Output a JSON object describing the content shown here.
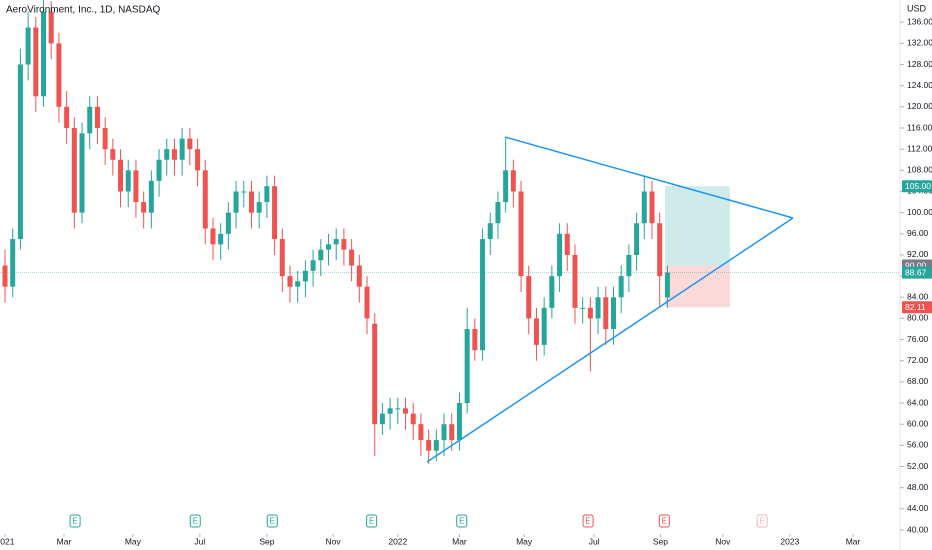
{
  "chart_data": {
    "type": "candlestick",
    "title": "AeroVironment, Inc., 1D, NASDAQ",
    "currency": "USD",
    "up_color": "#26a69a",
    "down_color": "#ef5350",
    "series": {
      "open": [
        90,
        86,
        95,
        128,
        135,
        122,
        138,
        132,
        120,
        116,
        100,
        115,
        120,
        116,
        112,
        110,
        104,
        108,
        102,
        100,
        106,
        110,
        112,
        110,
        114,
        112,
        108,
        97,
        94,
        96,
        100,
        104,
        104,
        100,
        102,
        105,
        95,
        88,
        86,
        87,
        89,
        91,
        93,
        94,
        95,
        93,
        90,
        86,
        79,
        60,
        62,
        63,
        63,
        62,
        60,
        57,
        55,
        57,
        60,
        57,
        64,
        78,
        74,
        95,
        98,
        102,
        108,
        104,
        88,
        80,
        75,
        82,
        88,
        96,
        92,
        82,
        82,
        80,
        84,
        78,
        84,
        88,
        92,
        98,
        104,
        98,
        84
      ],
      "high": [
        93,
        97,
        131,
        138,
        137,
        141,
        140,
        134,
        123,
        118,
        117,
        122,
        122,
        118,
        114,
        112,
        110,
        110,
        104,
        108,
        112,
        114,
        114,
        116,
        116,
        114,
        110,
        99,
        98,
        102,
        106,
        106,
        106,
        104,
        107,
        107,
        97,
        90,
        89,
        91,
        93,
        95,
        96,
        97,
        97,
        95,
        92,
        88,
        81,
        64,
        65,
        65,
        65,
        64,
        62,
        59,
        59,
        62,
        62,
        66,
        82,
        80,
        97,
        100,
        104,
        114,
        110,
        106,
        90,
        82,
        84,
        90,
        98,
        98,
        94,
        84,
        84,
        86,
        86,
        86,
        90,
        94,
        100,
        107,
        106,
        100,
        90
      ],
      "low": [
        83,
        84,
        93,
        125,
        119,
        120,
        129,
        117,
        113,
        97,
        98,
        112,
        113,
        109,
        107,
        101,
        101,
        99,
        97,
        97,
        103,
        107,
        107,
        107,
        109,
        105,
        94,
        91,
        91,
        93,
        97,
        101,
        97,
        97,
        99,
        92,
        85,
        83,
        83,
        84,
        86,
        88,
        90,
        91,
        90,
        87,
        83,
        77,
        54,
        58,
        59,
        60,
        59,
        57,
        54,
        52.5,
        53,
        54,
        55,
        55,
        62,
        72,
        72,
        92,
        95,
        100,
        101,
        85,
        77,
        72,
        73,
        80,
        85,
        89,
        79,
        79,
        70,
        77,
        75,
        75,
        81,
        85,
        89,
        95,
        95,
        82,
        82
      ],
      "close": [
        86,
        95,
        128,
        135,
        122,
        138,
        132,
        120,
        116,
        100,
        115,
        120,
        116,
        112,
        110,
        104,
        108,
        102,
        100,
        106,
        110,
        112,
        110,
        114,
        112,
        108,
        97,
        94,
        96,
        100,
        104,
        104,
        100,
        102,
        105,
        95,
        88,
        86,
        87,
        89,
        91,
        93,
        94,
        95,
        93,
        90,
        86,
        80,
        60,
        62,
        63,
        63,
        62,
        60,
        57,
        55,
        57,
        60,
        57,
        64,
        78,
        74,
        95,
        98,
        102,
        108,
        104,
        88,
        80,
        75,
        82,
        88,
        96,
        92,
        82,
        82,
        80,
        84,
        78,
        84,
        88,
        92,
        98,
        104,
        98,
        88,
        88.67
      ]
    },
    "xlim": [
      -0.65,
      116.2
    ],
    "xticks": [
      {
        "value": 0,
        "label": "2021"
      },
      {
        "value": 7.66,
        "label": "Mar"
      },
      {
        "value": 16.6,
        "label": "May"
      },
      {
        "value": 25.3,
        "label": "Jul"
      },
      {
        "value": 34.0,
        "label": "Sep"
      },
      {
        "value": 42.6,
        "label": "Nov"
      },
      {
        "value": 51.0,
        "label": "2022"
      },
      {
        "value": 59.0,
        "label": "Mar"
      },
      {
        "value": 67.4,
        "label": "May"
      },
      {
        "value": 76.5,
        "label": "Jul"
      },
      {
        "value": 85.1,
        "label": "Sep"
      },
      {
        "value": 93.2,
        "label": "Nov"
      },
      {
        "value": 101.9,
        "label": "2023"
      },
      {
        "value": 110.1,
        "label": "Mar"
      }
    ],
    "ylim": [
      40,
      140.2
    ],
    "yticks": [
      {
        "value": 40,
        "label": "40.00"
      },
      {
        "value": 44,
        "label": "44.00"
      },
      {
        "value": 48,
        "label": "48.00"
      },
      {
        "value": 52,
        "label": "52.00"
      },
      {
        "value": 56,
        "label": "56.00"
      },
      {
        "value": 60,
        "label": "60.00"
      },
      {
        "value": 64,
        "label": "64.00"
      },
      {
        "value": 68,
        "label": "68.00"
      },
      {
        "value": 72,
        "label": "72.00"
      },
      {
        "value": 76,
        "label": "76.00"
      },
      {
        "value": 80,
        "label": "80.00"
      },
      {
        "value": 84,
        "label": "84.00"
      },
      {
        "value": 88,
        "label": "88.00"
      },
      {
        "value": 92,
        "label": "92.00"
      },
      {
        "value": 96,
        "label": "96.00"
      },
      {
        "value": 100,
        "label": "100.00"
      },
      {
        "value": 104,
        "label": "104.00"
      },
      {
        "value": 108,
        "label": "108.00"
      },
      {
        "value": 112,
        "label": "112.00"
      },
      {
        "value": 116,
        "label": "116.00"
      },
      {
        "value": 120,
        "label": "120.00"
      },
      {
        "value": 124,
        "label": "124.00"
      },
      {
        "value": 128,
        "label": "128.00"
      },
      {
        "value": 132,
        "label": "132.00"
      },
      {
        "value": 136,
        "label": "136.00"
      }
    ],
    "price_labels": [
      {
        "value": 105,
        "label": "105.00",
        "color": "#26a69a"
      },
      {
        "value": 90,
        "label": "90.00",
        "color": "#787b86"
      },
      {
        "value": 88.67,
        "label": "88.67",
        "color": "#26a69a"
      },
      {
        "value": 82.11,
        "label": "82.11",
        "color": "#ef5350"
      }
    ],
    "earnings": [
      {
        "label": "E",
        "x": 9.1,
        "color": "#26a69a"
      },
      {
        "label": "E",
        "x": 24.7,
        "color": "#26a69a"
      },
      {
        "label": "E",
        "x": 34.7,
        "color": "#26a69a"
      },
      {
        "label": "E",
        "x": 47.6,
        "color": "#26a69a"
      },
      {
        "label": "E",
        "x": 59.3,
        "color": "#26a69a"
      },
      {
        "label": "E",
        "x": 75.7,
        "color": "#ef5350"
      },
      {
        "label": "E",
        "x": 85.6,
        "color": "#ef5350"
      },
      {
        "label": "E",
        "x": 98.3,
        "color": "#f5b5b4"
      }
    ]
  }
}
